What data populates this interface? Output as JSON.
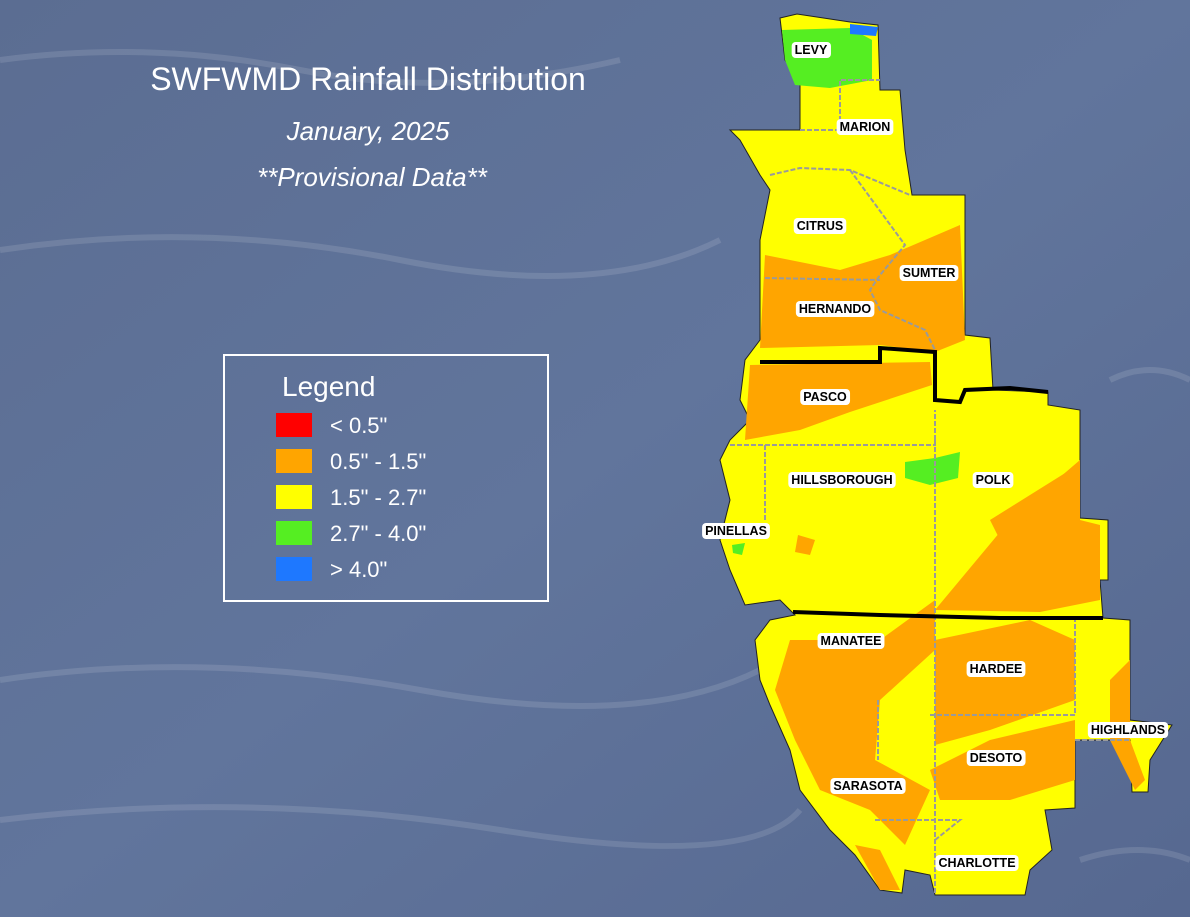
{
  "title": "SWFWMD Rainfall Distribution",
  "subtitle": "January, 2025",
  "note": "**Provisional Data**",
  "legend": {
    "title": "Legend",
    "items": [
      {
        "label": "< 0.5\"",
        "color": "#ff0000"
      },
      {
        "label": "0.5\" - 1.5\"",
        "color": "#ffa500"
      },
      {
        "label": "1.5\" - 2.7\"",
        "color": "#ffff00"
      },
      {
        "label": "2.7\" - 4.0\"",
        "color": "#55ee22"
      },
      {
        "label": "> 4.0\"",
        "color": "#1e78ff"
      }
    ]
  },
  "counties": [
    "LEVY",
    "MARION",
    "CITRUS",
    "SUMTER",
    "HERNANDO",
    "PASCO",
    "HILLSBOROUGH",
    "POLK",
    "PINELLAS",
    "MANATEE",
    "HARDEE",
    "HIGHLANDS",
    "DESOTO",
    "SARASOTA",
    "CHARLOTTE"
  ]
}
